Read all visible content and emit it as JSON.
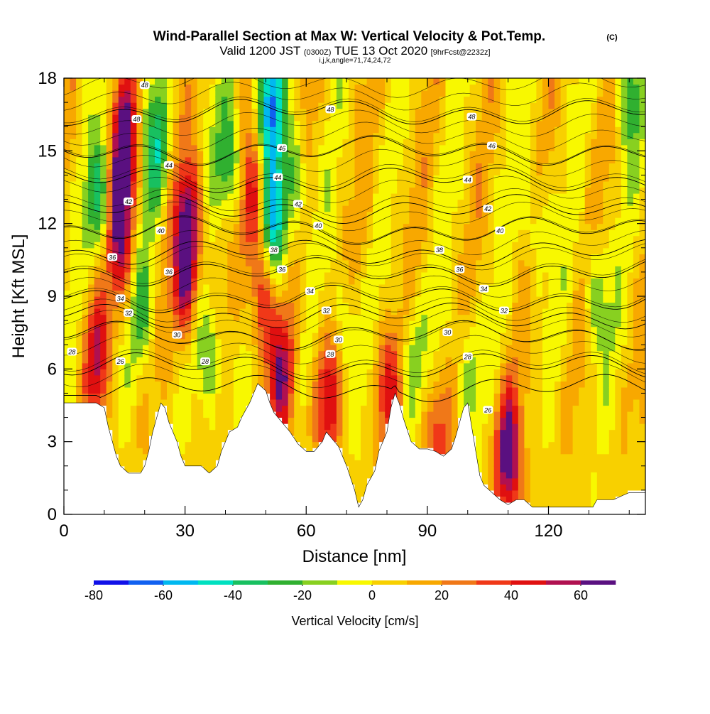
{
  "chart_data": {
    "type": "heatmap",
    "title": "Wind-Parallel Section at Max W: Vertical Velocity & Pot.Temp.",
    "title_suffix": "(C)",
    "subtitle": {
      "valid_prefix": "Valid 1200 JST",
      "utc": "(0300Z)",
      "date": "TUE 13 Oct 2020",
      "forecast": "[9hrFcst@2232z]"
    },
    "indices_line": "i,j,k,angle=71,74,24,72",
    "xlabel": "Distance [nm]",
    "ylabel": "Height [Kft MSL]",
    "xlim": [
      0,
      144
    ],
    "ylim": [
      0,
      18
    ],
    "x_ticks": [
      "0",
      "30",
      "60",
      "90",
      "120"
    ],
    "x_tick_values": [
      0,
      30,
      60,
      90,
      120
    ],
    "y_ticks": [
      "0",
      "3",
      "6",
      "9",
      "12",
      "15",
      "18"
    ],
    "y_tick_values": [
      0,
      3,
      6,
      9,
      12,
      15,
      18
    ],
    "colorbar": {
      "label": "Vertical Velocity [cm/s]",
      "range": [
        -80,
        70
      ],
      "step": 10,
      "tick_labels": [
        "-80",
        "-60",
        "-40",
        "-20",
        "0",
        "20",
        "40",
        "60"
      ],
      "tick_values": [
        -80,
        -60,
        -40,
        -20,
        0,
        20,
        40,
        60
      ],
      "colors": [
        "#1010e8",
        "#1060f0",
        "#00b8f0",
        "#00e0c0",
        "#18c060",
        "#30b030",
        "#88d020",
        "#f8f800",
        "#f8d000",
        "#f8a800",
        "#f07818",
        "#f03818",
        "#e01010",
        "#b01050",
        "#5a1080"
      ]
    },
    "terrain_kft": [
      [
        0,
        4.6
      ],
      [
        4,
        4.6
      ],
      [
        8,
        4.6
      ],
      [
        10,
        4.4
      ],
      [
        11,
        3.6
      ],
      [
        12,
        3.0
      ],
      [
        13,
        2.4
      ],
      [
        14,
        2.0
      ],
      [
        16,
        1.7
      ],
      [
        19,
        1.7
      ],
      [
        20,
        2.0
      ],
      [
        21,
        2.6
      ],
      [
        22,
        3.4
      ],
      [
        23,
        4.0
      ],
      [
        24,
        4.6
      ],
      [
        25,
        4.4
      ],
      [
        26,
        3.8
      ],
      [
        28,
        3.0
      ],
      [
        29,
        2.4
      ],
      [
        30,
        2.0
      ],
      [
        32,
        2.0
      ],
      [
        34,
        2.0
      ],
      [
        36,
        1.7
      ],
      [
        38,
        2.0
      ],
      [
        39,
        2.6
      ],
      [
        40,
        3.0
      ],
      [
        41,
        3.4
      ],
      [
        43,
        3.6
      ],
      [
        44,
        4.0
      ],
      [
        46,
        4.6
      ],
      [
        48,
        5.4
      ],
      [
        50,
        5.1
      ],
      [
        51,
        4.6
      ],
      [
        52,
        4.2
      ],
      [
        54,
        3.8
      ],
      [
        56,
        3.4
      ],
      [
        58,
        2.9
      ],
      [
        60,
        2.6
      ],
      [
        62,
        2.6
      ],
      [
        64,
        3.0
      ],
      [
        65,
        3.4
      ],
      [
        66,
        3.2
      ],
      [
        68,
        2.8
      ],
      [
        70,
        2.0
      ],
      [
        72,
        1.0
      ],
      [
        73,
        0.3
      ],
      [
        74,
        0.6
      ],
      [
        75,
        1.2
      ],
      [
        77,
        1.8
      ],
      [
        78,
        2.6
      ],
      [
        80,
        3.4
      ],
      [
        81,
        4.4
      ],
      [
        82,
        5.0
      ],
      [
        83,
        4.6
      ],
      [
        84,
        4.0
      ],
      [
        86,
        3.0
      ],
      [
        88,
        2.7
      ],
      [
        90,
        2.7
      ],
      [
        92,
        2.6
      ],
      [
        94,
        2.4
      ],
      [
        96,
        2.7
      ],
      [
        97,
        3.2
      ],
      [
        99,
        4.4
      ],
      [
        100,
        4.6
      ],
      [
        101,
        3.6
      ],
      [
        102,
        2.6
      ],
      [
        103,
        1.6
      ],
      [
        104,
        1.2
      ],
      [
        106,
        0.9
      ],
      [
        108,
        0.6
      ],
      [
        110,
        0.4
      ],
      [
        112,
        0.6
      ],
      [
        114,
        0.6
      ],
      [
        116,
        0.3
      ],
      [
        120,
        0.3
      ],
      [
        124,
        0.3
      ],
      [
        128,
        0.3
      ],
      [
        131,
        0.3
      ],
      [
        132,
        0.6
      ],
      [
        136,
        0.6
      ],
      [
        140,
        0.9
      ],
      [
        142,
        0.9
      ],
      [
        144,
        0.9
      ]
    ],
    "velocity_features": [
      {
        "x": 15,
        "z": 15.2,
        "w": 65
      },
      {
        "x": 14,
        "z": 11.5,
        "w": 55
      },
      {
        "x": 31,
        "z": 12.0,
        "w": 55
      },
      {
        "x": 30,
        "z": 9.5,
        "w": 45
      },
      {
        "x": 47,
        "z": 13.0,
        "w": 40
      },
      {
        "x": 49,
        "z": 9.0,
        "w": 40
      },
      {
        "x": 54,
        "z": 5.5,
        "w": 48
      },
      {
        "x": 65,
        "z": 4.8,
        "w": 42
      },
      {
        "x": 80,
        "z": 5.2,
        "w": 35
      },
      {
        "x": 110,
        "z": 2.5,
        "w": 65
      },
      {
        "x": 92,
        "z": 3.2,
        "w": 32
      },
      {
        "x": 8,
        "z": 6.5,
        "w": 40
      },
      {
        "x": 23,
        "z": 15.0,
        "w": -35
      },
      {
        "x": 9,
        "z": 13.0,
        "w": -35
      },
      {
        "x": 41,
        "z": 14.5,
        "w": -38
      },
      {
        "x": 51,
        "z": 17.0,
        "w": -60
      },
      {
        "x": 52,
        "z": 12.0,
        "w": -55
      },
      {
        "x": 57,
        "z": 14.0,
        "w": -28
      },
      {
        "x": 36,
        "z": 6.5,
        "w": -30
      },
      {
        "x": 20,
        "z": 8.5,
        "w": -25
      },
      {
        "x": 70,
        "z": 7.5,
        "w": -22
      },
      {
        "x": 86,
        "z": 6.5,
        "w": -22
      },
      {
        "x": 100,
        "z": 6.0,
        "w": -22
      },
      {
        "x": 132,
        "z": 9.0,
        "w": -25
      },
      {
        "x": 117,
        "z": 12.0,
        "w": -20
      },
      {
        "x": 140,
        "z": 17.5,
        "w": -28
      }
    ],
    "theta_contours": [
      {
        "label": "26",
        "base_kft": 5.2
      },
      {
        "label": "28",
        "base_kft": 6.1
      },
      {
        "label": "30",
        "base_kft": 7.4
      },
      {
        "label": "32",
        "base_kft": 8.2
      },
      {
        "label": "34",
        "base_kft": 8.9
      },
      {
        "label": "36",
        "base_kft": 10.0
      },
      {
        "label": "38",
        "base_kft": 10.8
      },
      {
        "label": "40",
        "base_kft": 11.7
      },
      {
        "label": "42",
        "base_kft": 12.6
      },
      {
        "label": "44",
        "base_kft": 13.8
      },
      {
        "label": "46",
        "base_kft": 15.0
      },
      {
        "label": "48",
        "base_kft": 16.6
      }
    ],
    "contour_labels": [
      {
        "text": "28",
        "x": 2,
        "z": 6.7
      },
      {
        "text": "26",
        "x": 14,
        "z": 6.3
      },
      {
        "text": "28",
        "x": 35,
        "z": 6.3
      },
      {
        "text": "30",
        "x": 28,
        "z": 7.4
      },
      {
        "text": "32",
        "x": 16,
        "z": 8.3
      },
      {
        "text": "34",
        "x": 14,
        "z": 8.9
      },
      {
        "text": "36",
        "x": 12,
        "z": 10.6
      },
      {
        "text": "36",
        "x": 26,
        "z": 10.0
      },
      {
        "text": "40",
        "x": 24,
        "z": 11.7
      },
      {
        "text": "42",
        "x": 16,
        "z": 12.9
      },
      {
        "text": "44",
        "x": 26,
        "z": 14.4
      },
      {
        "text": "48",
        "x": 18,
        "z": 16.3
      },
      {
        "text": "48",
        "x": 20,
        "z": 17.7
      },
      {
        "text": "38",
        "x": 52,
        "z": 10.9
      },
      {
        "text": "36",
        "x": 54,
        "z": 10.1
      },
      {
        "text": "34",
        "x": 61,
        "z": 9.2
      },
      {
        "text": "32",
        "x": 65,
        "z": 8.4
      },
      {
        "text": "30",
        "x": 68,
        "z": 7.2
      },
      {
        "text": "28",
        "x": 66,
        "z": 6.6
      },
      {
        "text": "40",
        "x": 63,
        "z": 11.9
      },
      {
        "text": "42",
        "x": 58,
        "z": 12.8
      },
      {
        "text": "44",
        "x": 53,
        "z": 13.9
      },
      {
        "text": "46",
        "x": 54,
        "z": 15.1
      },
      {
        "text": "48",
        "x": 66,
        "z": 16.7
      },
      {
        "text": "38",
        "x": 93,
        "z": 10.9
      },
      {
        "text": "36",
        "x": 98,
        "z": 10.1
      },
      {
        "text": "34",
        "x": 104,
        "z": 9.3
      },
      {
        "text": "32",
        "x": 109,
        "z": 8.4
      },
      {
        "text": "30",
        "x": 95,
        "z": 7.5
      },
      {
        "text": "28",
        "x": 100,
        "z": 6.5
      },
      {
        "text": "26",
        "x": 105,
        "z": 4.3
      },
      {
        "text": "40",
        "x": 108,
        "z": 11.7
      },
      {
        "text": "42",
        "x": 105,
        "z": 12.6
      },
      {
        "text": "44",
        "x": 100,
        "z": 13.8
      },
      {
        "text": "46",
        "x": 106,
        "z": 15.2
      },
      {
        "text": "48",
        "x": 101,
        "z": 16.4
      }
    ],
    "grid": false,
    "legend": "bottom"
  }
}
